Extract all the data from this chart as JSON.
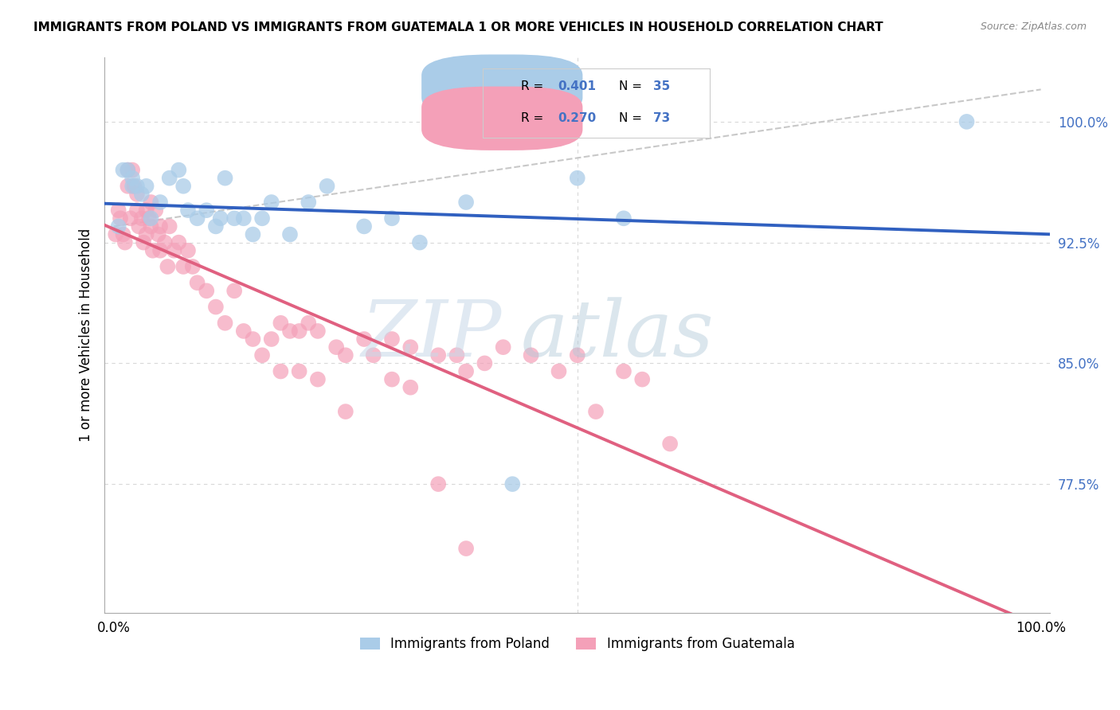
{
  "title": "IMMIGRANTS FROM POLAND VS IMMIGRANTS FROM GUATEMALA 1 OR MORE VEHICLES IN HOUSEHOLD CORRELATION CHART",
  "source": "Source: ZipAtlas.com",
  "ylabel": "1 or more Vehicles in Household",
  "ytick_labels": [
    "77.5%",
    "85.0%",
    "92.5%",
    "100.0%"
  ],
  "ytick_values": [
    0.775,
    0.85,
    0.925,
    1.0
  ],
  "ylim": [
    0.695,
    1.04
  ],
  "xlim": [
    -0.01,
    1.01
  ],
  "poland_R": "0.401",
  "poland_N": "35",
  "guatemala_R": "0.270",
  "guatemala_N": "73",
  "poland_color": "#aacce8",
  "guatemala_color": "#f4a0b8",
  "poland_line_color": "#3060c0",
  "guatemala_line_color": "#e06080",
  "grid_color": "#d8d8d8",
  "dashed_color": "#c8c8c8",
  "poland_x": [
    0.005,
    0.01,
    0.015,
    0.02,
    0.02,
    0.025,
    0.03,
    0.035,
    0.04,
    0.05,
    0.06,
    0.07,
    0.075,
    0.08,
    0.09,
    0.1,
    0.11,
    0.115,
    0.12,
    0.13,
    0.14,
    0.15,
    0.16,
    0.17,
    0.19,
    0.21,
    0.23,
    0.27,
    0.3,
    0.33,
    0.38,
    0.43,
    0.5,
    0.55,
    0.92
  ],
  "poland_y": [
    0.935,
    0.97,
    0.97,
    0.965,
    0.96,
    0.96,
    0.955,
    0.96,
    0.94,
    0.95,
    0.965,
    0.97,
    0.96,
    0.945,
    0.94,
    0.945,
    0.935,
    0.94,
    0.965,
    0.94,
    0.94,
    0.93,
    0.94,
    0.95,
    0.93,
    0.95,
    0.96,
    0.935,
    0.94,
    0.925,
    0.95,
    0.775,
    0.965,
    0.94,
    1.0
  ],
  "guatemala_x": [
    0.002,
    0.005,
    0.007,
    0.01,
    0.012,
    0.015,
    0.015,
    0.018,
    0.02,
    0.022,
    0.025,
    0.025,
    0.027,
    0.03,
    0.032,
    0.035,
    0.035,
    0.038,
    0.04,
    0.04,
    0.042,
    0.045,
    0.048,
    0.05,
    0.05,
    0.055,
    0.058,
    0.06,
    0.065,
    0.07,
    0.075,
    0.08,
    0.085,
    0.09,
    0.1,
    0.11,
    0.12,
    0.13,
    0.14,
    0.15,
    0.16,
    0.17,
    0.18,
    0.19,
    0.2,
    0.21,
    0.22,
    0.24,
    0.25,
    0.27,
    0.28,
    0.3,
    0.32,
    0.35,
    0.37,
    0.38,
    0.4,
    0.42,
    0.45,
    0.48,
    0.5,
    0.52,
    0.55,
    0.57,
    0.6,
    0.18,
    0.2,
    0.22,
    0.25,
    0.3,
    0.32,
    0.35,
    0.38
  ],
  "guatemala_y": [
    0.93,
    0.945,
    0.94,
    0.93,
    0.925,
    0.97,
    0.96,
    0.94,
    0.97,
    0.96,
    0.945,
    0.955,
    0.935,
    0.94,
    0.925,
    0.945,
    0.93,
    0.94,
    0.935,
    0.95,
    0.92,
    0.945,
    0.93,
    0.92,
    0.935,
    0.925,
    0.91,
    0.935,
    0.92,
    0.925,
    0.91,
    0.92,
    0.91,
    0.9,
    0.895,
    0.885,
    0.875,
    0.895,
    0.87,
    0.865,
    0.855,
    0.865,
    0.875,
    0.87,
    0.87,
    0.875,
    0.87,
    0.86,
    0.855,
    0.865,
    0.855,
    0.865,
    0.86,
    0.855,
    0.855,
    0.845,
    0.85,
    0.86,
    0.855,
    0.845,
    0.855,
    0.82,
    0.845,
    0.84,
    0.8,
    0.845,
    0.845,
    0.84,
    0.82,
    0.84,
    0.835,
    0.775,
    0.735
  ]
}
